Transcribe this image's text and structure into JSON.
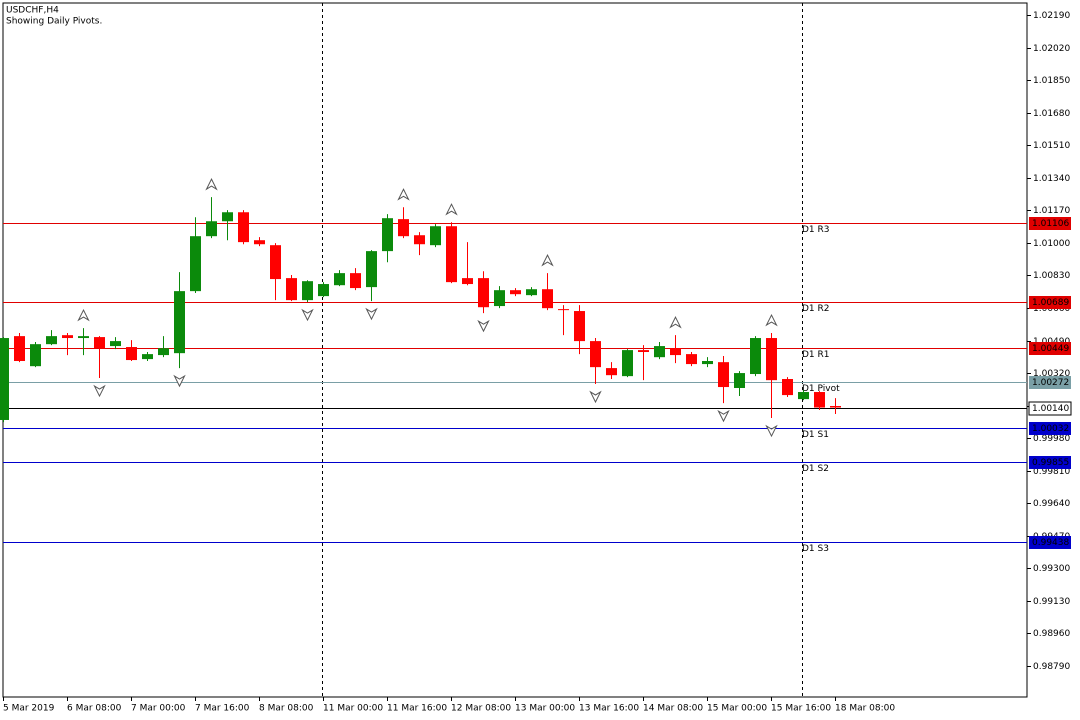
{
  "chart_data": {
    "type": "candlestick",
    "title": "USDCHF,H4",
    "subtitle": "Showing Daily Pivots.",
    "categories": [
      "5 Mar 2019",
      null,
      null,
      null,
      "6 Mar 08:00",
      null,
      null,
      null,
      "7 Mar 00:00",
      null,
      null,
      null,
      "7 Mar 16:00",
      null,
      null,
      null,
      "8 Mar 08:00",
      null,
      null,
      null,
      "11 Mar 00:00",
      null,
      null,
      null,
      "11 Mar 16:00",
      null,
      null,
      null,
      "12 Mar 08:00",
      null,
      null,
      null,
      "13 Mar 00:00",
      null,
      null,
      null,
      "13 Mar 16:00",
      null,
      null,
      null,
      "14 Mar 08:00",
      null,
      null,
      null,
      "15 Mar 00:00",
      null,
      null,
      null,
      "15 Mar 16:00",
      null,
      null,
      null,
      "18 Mar 08:00"
    ],
    "open": [
      1.00075,
      1.00513,
      1.00356,
      1.00471,
      1.00518,
      1.00503,
      1.00508,
      1.00461,
      1.00456,
      1.00393,
      1.00414,
      1.00424,
      1.00748,
      1.01035,
      1.01113,
      1.0116,
      1.01014,
      1.00988,
      1.00816,
      1.00701,
      1.00722,
      1.00779,
      1.00842,
      1.00769,
      1.00957,
      1.01124,
      1.0104,
      1.00988,
      1.01087,
      1.00816,
      1.00816,
      1.0067,
      1.00753,
      1.00727,
      1.00758,
      1.00654,
      1.00644,
      1.00487,
      1.00346,
      1.00304,
      1.0044,
      1.00403,
      1.0045,
      1.00419,
      1.00367,
      1.00377,
      1.00242,
      1.00315,
      1.00503,
      1.00289,
      1.00184,
      1.00221,
      1.00148
    ],
    "high": [
      1.00508,
      1.00529,
      1.00482,
      1.00544,
      1.00529,
      1.00555,
      1.00513,
      1.00508,
      1.00492,
      1.0043,
      1.00513,
      1.00847,
      1.01134,
      1.01239,
      1.01171,
      1.01171,
      1.0103,
      1.00999,
      1.00832,
      1.00805,
      1.00795,
      1.00858,
      1.00868,
      1.00962,
      1.0115,
      1.01186,
      1.01056,
      1.01098,
      1.01108,
      1.01004,
      1.00852,
      1.00774,
      1.00764,
      1.00769,
      1.00842,
      1.00675,
      1.00675,
      1.00503,
      1.00377,
      1.00445,
      1.00466,
      1.00482,
      1.00518,
      1.0043,
      1.00403,
      1.00409,
      1.0033,
      1.00513,
      1.00529,
      1.00299,
      1.00231,
      1.00226,
      1.00189
    ],
    "low": [
      1.00064,
      1.00377,
      1.00351,
      1.00466,
      1.00414,
      1.00414,
      1.00294,
      1.00445,
      1.00383,
      1.00383,
      1.00403,
      1.00346,
      1.00738,
      1.01025,
      1.01014,
      1.00993,
      1.00983,
      1.00701,
      1.00696,
      1.00691,
      1.00717,
      1.00774,
      1.00753,
      1.00696,
      1.00899,
      1.01025,
      1.00936,
      1.00978,
      1.0079,
      1.00779,
      1.00633,
      1.00659,
      1.00722,
      1.00722,
      1.00649,
      1.00518,
      1.00419,
      1.00263,
      1.00289,
      1.00299,
      1.00283,
      1.00393,
      1.00372,
      1.00356,
      1.00351,
      1.00163,
      1.002,
      1.00304,
      1.00085,
      1.00195,
      1.00179,
      1.00127,
      1.00106
    ],
    "close": [
      1.00503,
      1.00383,
      1.00471,
      1.00513,
      1.00503,
      1.00513,
      1.0045,
      1.00487,
      1.00388,
      1.00419,
      1.0045,
      1.00748,
      1.01035,
      1.01113,
      1.0116,
      1.01004,
      1.00993,
      1.00811,
      1.00701,
      1.008,
      1.00785,
      1.00842,
      1.00764,
      1.00957,
      1.01129,
      1.01035,
      1.00993,
      1.01087,
      1.00795,
      1.00785,
      1.00664,
      1.00753,
      1.00732,
      1.00758,
      1.00659,
      1.00649,
      1.00487,
      1.00351,
      1.00309,
      1.0044,
      1.0043,
      1.00461,
      1.00414,
      1.00367,
      1.00383,
      1.00247,
      1.0032,
      1.00503,
      1.00283,
      1.00205,
      1.00221,
      1.0014,
      1.0014
    ],
    "up_color": "#0b8a0b",
    "down_color": "#ff0000",
    "fractals_up": [
      5,
      13,
      25,
      28,
      34,
      42,
      48
    ],
    "fractals_down": [
      6,
      11,
      19,
      23,
      30,
      37,
      45,
      48
    ],
    "ylim": [
      0.98628,
      1.02253
    ],
    "yticks": [
      {
        "value": 1.0219,
        "label": "1.02190"
      },
      {
        "value": 1.0202,
        "label": "1.02020"
      },
      {
        "value": 1.0185,
        "label": "1.01850"
      },
      {
        "value": 1.0168,
        "label": "1.01680"
      },
      {
        "value": 1.0151,
        "label": "1.01510"
      },
      {
        "value": 1.0134,
        "label": "1.01340"
      },
      {
        "value": 1.0117,
        "label": "1.01170"
      },
      {
        "value": 1.01,
        "label": "1.01000"
      },
      {
        "value": 1.0083,
        "label": "1.00830"
      },
      {
        "value": 1.0066,
        "label": "1.00660"
      },
      {
        "value": 1.0049,
        "label": "1.00490"
      },
      {
        "value": 1.0032,
        "label": "1.00320"
      },
      {
        "value": 1.0015,
        "label": "1.00150"
      },
      {
        "value": 0.9998,
        "label": "0.99980"
      },
      {
        "value": 0.9981,
        "label": "0.99810"
      },
      {
        "value": 0.9964,
        "label": "0.99640"
      },
      {
        "value": 0.9947,
        "label": "0.99470"
      },
      {
        "value": 0.993,
        "label": "0.99300"
      },
      {
        "value": 0.9913,
        "label": "0.99130"
      },
      {
        "value": 0.9896,
        "label": "0.98960"
      },
      {
        "value": 0.9879,
        "label": "0.98790"
      }
    ],
    "levels": [
      {
        "name": "D1 R3",
        "value": 1.01106,
        "color": "#e00000"
      },
      {
        "name": "D1 R2",
        "value": 1.00689,
        "color": "#e00000"
      },
      {
        "name": "D1 R1",
        "value": 1.00449,
        "color": "#e00000"
      },
      {
        "name": "D1 Pivot",
        "value": 1.00272,
        "color": "#7a9fa6"
      },
      {
        "name": "D1 S1",
        "value": 1.00032,
        "color": "#0000cc"
      },
      {
        "name": "D1 S2",
        "value": 0.99855,
        "color": "#0000cc"
      },
      {
        "name": "D1 S3",
        "value": 0.99438,
        "color": "#0000cc"
      }
    ],
    "last_price": {
      "value": 1.0014,
      "label": "1.00140"
    }
  }
}
